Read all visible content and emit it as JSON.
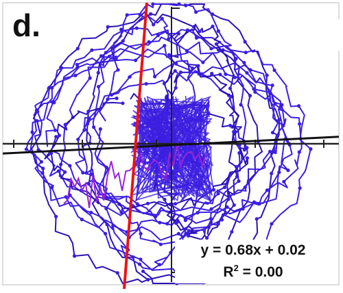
{
  "panel_label": "d.",
  "colors": {
    "trajectory": "#3b1fe0",
    "trajectory_dark": "#2a12b8",
    "highlight": "#9a22d8",
    "regression_steep": "#ee1111",
    "regression_flat": "#111111",
    "axis": "#222222"
  },
  "annotation": {
    "equation": "y = 0.68x + 0.02",
    "r2_prefix": "R",
    "r2_sup": "2",
    "r2_value": " = 0.00"
  },
  "chart_data": {
    "type": "line",
    "title": "",
    "xlabel": "",
    "ylabel": "",
    "xlim": [
      -1,
      1
    ],
    "ylim": [
      -1,
      1
    ],
    "grid": false,
    "legend": "none",
    "fit_lines": [
      {
        "label": "y = 0.68x + 0.02",
        "slope": 0.68,
        "intercept": 0.02
      },
      {
        "label": "",
        "slope": 0.05,
        "intercept": -0.02
      }
    ],
    "stats": {
      "R2": 0.0
    }
  }
}
